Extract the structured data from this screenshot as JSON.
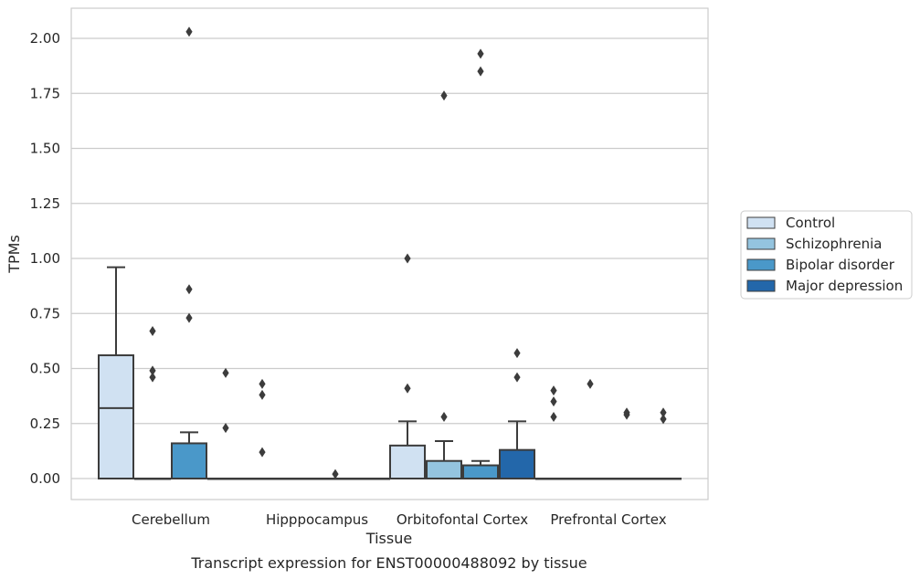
{
  "chart_data": {
    "type": "box",
    "title": "",
    "caption": "Transcript expression for ENST00000488092 by tissue",
    "xlabel": "Tissue",
    "ylabel": "TPMs",
    "ylim": [
      -0.1,
      2.13
    ],
    "yticks": [
      "0.00",
      "0.25",
      "0.50",
      "0.75",
      "1.00",
      "1.25",
      "1.50",
      "1.75",
      "2.00"
    ],
    "grid": "horizontal",
    "legend_position": "right",
    "categories": [
      "Cerebellum",
      "Hipppocampus",
      "Orbitofontal Cortex",
      "Prefrontal Cortex"
    ],
    "series": [
      {
        "name": "Control",
        "color": "#d0e1f2",
        "boxes": [
          {
            "q1": 0,
            "median": 0.32,
            "q3": 0.56,
            "whisker_low": 0,
            "whisker_high": 0.96,
            "outliers": []
          },
          {
            "q1": 0,
            "median": 0,
            "q3": 0,
            "whisker_low": 0,
            "whisker_high": 0,
            "outliers": [
              0.43,
              0.38,
              0.12
            ]
          },
          {
            "q1": 0,
            "median": 0,
            "q3": 0.15,
            "whisker_low": 0,
            "whisker_high": 0.26,
            "outliers": [
              1.0,
              0.41
            ]
          },
          {
            "q1": 0,
            "median": 0,
            "q3": 0,
            "whisker_low": 0,
            "whisker_high": 0,
            "outliers": [
              0.4,
              0.35,
              0.28
            ]
          }
        ]
      },
      {
        "name": "Schizophrenia",
        "color": "#94c4df",
        "boxes": [
          {
            "q1": 0,
            "median": 0,
            "q3": 0,
            "whisker_low": 0,
            "whisker_high": 0,
            "outliers": [
              0.67,
              0.49,
              0.46
            ]
          },
          {
            "q1": 0,
            "median": 0,
            "q3": 0,
            "whisker_low": 0,
            "whisker_high": 0,
            "outliers": []
          },
          {
            "q1": 0,
            "median": 0,
            "q3": 0.08,
            "whisker_low": 0,
            "whisker_high": 0.17,
            "outliers": [
              1.74,
              0.28
            ]
          },
          {
            "q1": 0,
            "median": 0,
            "q3": 0,
            "whisker_low": 0,
            "whisker_high": 0,
            "outliers": [
              0.43
            ]
          }
        ]
      },
      {
        "name": "Bipolar disorder",
        "color": "#4a98c9",
        "boxes": [
          {
            "q1": 0,
            "median": 0,
            "q3": 0.16,
            "whisker_low": 0,
            "whisker_high": 0.21,
            "outliers": [
              2.03,
              0.86,
              0.73
            ]
          },
          {
            "q1": 0,
            "median": 0,
            "q3": 0,
            "whisker_low": 0,
            "whisker_high": 0,
            "outliers": [
              0.02
            ]
          },
          {
            "q1": 0,
            "median": 0,
            "q3": 0.06,
            "whisker_low": 0,
            "whisker_high": 0.08,
            "outliers": [
              1.93,
              1.85
            ]
          },
          {
            "q1": 0,
            "median": 0,
            "q3": 0,
            "whisker_low": 0,
            "whisker_high": 0,
            "outliers": [
              0.3,
              0.29
            ]
          }
        ]
      },
      {
        "name": "Major depression",
        "color": "#2367aa",
        "boxes": [
          {
            "q1": 0,
            "median": 0,
            "q3": 0,
            "whisker_low": 0,
            "whisker_high": 0,
            "outliers": [
              0.48,
              0.23
            ]
          },
          {
            "q1": 0,
            "median": 0,
            "q3": 0,
            "whisker_low": 0,
            "whisker_high": 0,
            "outliers": []
          },
          {
            "q1": 0,
            "median": 0,
            "q3": 0.13,
            "whisker_low": 0,
            "whisker_high": 0.26,
            "outliers": [
              0.57,
              0.46
            ]
          },
          {
            "q1": 0,
            "median": 0,
            "q3": 0,
            "whisker_low": 0,
            "whisker_high": 0,
            "outliers": [
              0.3,
              0.27
            ]
          }
        ]
      }
    ]
  }
}
